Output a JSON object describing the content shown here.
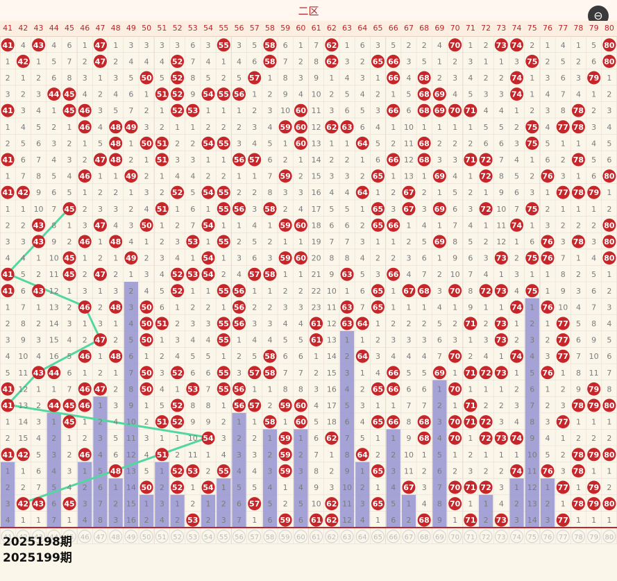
{
  "header": {
    "region_label": "二区",
    "zoom_icon": "zoom-out-icon"
  },
  "colors": {
    "hit": "#c6262a",
    "bar": "#9b99d3",
    "trend": "#53d7a0",
    "grid": "#e8dcd2",
    "miss_text": "#7b7b7b",
    "sep_line": "#c0252a"
  },
  "chart_data": {
    "type": "table",
    "columns": [
      41,
      42,
      43,
      44,
      45,
      46,
      47,
      48,
      49,
      50,
      51,
      52,
      53,
      54,
      55,
      56,
      57,
      58,
      59,
      60,
      61,
      62,
      63,
      64,
      65,
      66,
      67,
      68,
      69,
      70,
      71,
      72,
      73,
      74,
      75,
      76,
      77,
      78,
      79,
      80
    ],
    "periods_shown": [
      "2025198期",
      "2025199期"
    ],
    "rows": [
      [
        0,
        4,
        0,
        4,
        6,
        1,
        0,
        1,
        3,
        3,
        3,
        3,
        6,
        3,
        0,
        3,
        5,
        0,
        6,
        1,
        7,
        0,
        1,
        6,
        3,
        5,
        2,
        2,
        4,
        0,
        1,
        2,
        0,
        0,
        2,
        1,
        4,
        1,
        5,
        0
      ],
      [
        1,
        0,
        1,
        5,
        7,
        2,
        0,
        2,
        4,
        4,
        4,
        0,
        7,
        4,
        1,
        4,
        6,
        0,
        7,
        2,
        8,
        0,
        3,
        2,
        0,
        0,
        3,
        5,
        1,
        2,
        3,
        1,
        1,
        3,
        0,
        2,
        5,
        2,
        6,
        0
      ],
      [
        2,
        1,
        2,
        6,
        8,
        3,
        1,
        3,
        5,
        0,
        5,
        0,
        8,
        5,
        2,
        5,
        0,
        1,
        8,
        3,
        9,
        1,
        4,
        3,
        1,
        0,
        4,
        0,
        2,
        3,
        4,
        2,
        2,
        0,
        1,
        3,
        6,
        3,
        0,
        1
      ],
      [
        3,
        2,
        3,
        0,
        0,
        4,
        2,
        4,
        6,
        1,
        0,
        0,
        9,
        0,
        0,
        0,
        1,
        2,
        9,
        4,
        10,
        2,
        5,
        4,
        2,
        1,
        5,
        0,
        0,
        4,
        5,
        3,
        3,
        0,
        1,
        4,
        7,
        4,
        1,
        2
      ],
      [
        0,
        3,
        4,
        1,
        0,
        0,
        3,
        5,
        7,
        2,
        1,
        0,
        0,
        1,
        1,
        1,
        2,
        3,
        10,
        0,
        11,
        3,
        6,
        5,
        3,
        0,
        6,
        0,
        0,
        0,
        0,
        4,
        4,
        1,
        2,
        3,
        8,
        0,
        2,
        3
      ],
      [
        1,
        4,
        5,
        2,
        1,
        0,
        4,
        0,
        0,
        3,
        2,
        1,
        1,
        2,
        2,
        2,
        3,
        4,
        0,
        0,
        12,
        0,
        0,
        6,
        4,
        1,
        10,
        1,
        1,
        1,
        1,
        5,
        5,
        2,
        0,
        4,
        0,
        0,
        3,
        4
      ],
      [
        2,
        5,
        6,
        3,
        2,
        1,
        5,
        0,
        1,
        0,
        0,
        2,
        2,
        0,
        0,
        3,
        4,
        5,
        1,
        0,
        13,
        1,
        1,
        0,
        5,
        2,
        11,
        0,
        2,
        2,
        2,
        6,
        6,
        3,
        0,
        5,
        1,
        1,
        4,
        5
      ],
      [
        0,
        6,
        7,
        4,
        3,
        2,
        0,
        0,
        2,
        1,
        0,
        3,
        3,
        1,
        1,
        0,
        0,
        6,
        2,
        1,
        14,
        2,
        2,
        1,
        6,
        0,
        12,
        0,
        3,
        3,
        0,
        0,
        7,
        4,
        1,
        6,
        2,
        0,
        5,
        6
      ],
      [
        1,
        7,
        8,
        5,
        4,
        0,
        1,
        1,
        0,
        2,
        1,
        4,
        4,
        2,
        2,
        1,
        1,
        7,
        0,
        2,
        15,
        3,
        3,
        2,
        0,
        1,
        13,
        1,
        0,
        4,
        1,
        0,
        8,
        5,
        2,
        0,
        3,
        1,
        6,
        0
      ],
      [
        0,
        0,
        9,
        6,
        5,
        1,
        2,
        2,
        1,
        3,
        2,
        0,
        5,
        0,
        0,
        2,
        2,
        8,
        3,
        3,
        16,
        4,
        4,
        0,
        1,
        2,
        0,
        2,
        1,
        5,
        2,
        1,
        9,
        6,
        3,
        1,
        0,
        0,
        0,
        1
      ],
      [
        1,
        1,
        10,
        7,
        0,
        2,
        3,
        3,
        2,
        4,
        0,
        1,
        6,
        1,
        0,
        0,
        3,
        0,
        2,
        4,
        17,
        5,
        5,
        1,
        0,
        3,
        0,
        3,
        0,
        6,
        3,
        0,
        10,
        7,
        0,
        2,
        1,
        1,
        1,
        2
      ],
      [
        2,
        2,
        0,
        8,
        1,
        3,
        0,
        4,
        3,
        0,
        1,
        2,
        7,
        0,
        1,
        1,
        4,
        1,
        0,
        0,
        18,
        6,
        6,
        2,
        0,
        0,
        1,
        4,
        1,
        7,
        4,
        1,
        11,
        0,
        1,
        3,
        2,
        2,
        2,
        0
      ],
      [
        3,
        3,
        0,
        9,
        2,
        0,
        1,
        0,
        4,
        1,
        2,
        3,
        0,
        1,
        0,
        2,
        5,
        2,
        1,
        1,
        19,
        7,
        7,
        3,
        1,
        1,
        2,
        5,
        0,
        8,
        5,
        2,
        12,
        1,
        6,
        0,
        3,
        0,
        3,
        0
      ],
      [
        4,
        4,
        1,
        10,
        0,
        1,
        2,
        1,
        0,
        2,
        3,
        4,
        1,
        0,
        1,
        3,
        6,
        3,
        0,
        0,
        20,
        8,
        8,
        4,
        2,
        2,
        3,
        6,
        1,
        9,
        6,
        3,
        0,
        2,
        0,
        0,
        7,
        1,
        4,
        0
      ],
      [
        0,
        5,
        2,
        11,
        0,
        2,
        0,
        2,
        1,
        3,
        4,
        0,
        0,
        0,
        2,
        4,
        0,
        0,
        1,
        1,
        21,
        9,
        0,
        5,
        3,
        0,
        4,
        7,
        2,
        10,
        7,
        4,
        1,
        3,
        1,
        1,
        8,
        2,
        5,
        1
      ],
      [
        0,
        6,
        0,
        12,
        1,
        3,
        1,
        3,
        2,
        4,
        5,
        0,
        1,
        1,
        0,
        0,
        1,
        1,
        2,
        2,
        22,
        10,
        1,
        6,
        0,
        1,
        0,
        0,
        3,
        0,
        8,
        0,
        0,
        4,
        0,
        1,
        9,
        3,
        6,
        2
      ],
      [
        1,
        7,
        1,
        13,
        2,
        0,
        2,
        0,
        3,
        0,
        6,
        1,
        2,
        2,
        1,
        0,
        2,
        2,
        3,
        3,
        23,
        11,
        0,
        7,
        0,
        1,
        1,
        1,
        4,
        1,
        9,
        1,
        1,
        0,
        1,
        0,
        10,
        4,
        7,
        3
      ],
      [
        2,
        8,
        2,
        14,
        3,
        1,
        3,
        1,
        4,
        0,
        0,
        2,
        3,
        3,
        0,
        0,
        3,
        3,
        4,
        4,
        0,
        12,
        0,
        0,
        1,
        2,
        2,
        2,
        5,
        2,
        0,
        2,
        0,
        1,
        2,
        1,
        0,
        5,
        8,
        4
      ],
      [
        3,
        9,
        3,
        15,
        4,
        2,
        0,
        2,
        5,
        0,
        1,
        3,
        4,
        4,
        0,
        1,
        4,
        4,
        5,
        5,
        0,
        13,
        1,
        1,
        2,
        3,
        3,
        3,
        6,
        3,
        1,
        3,
        0,
        2,
        3,
        2,
        0,
        6,
        9,
        5
      ],
      [
        4,
        10,
        4,
        16,
        5,
        0,
        1,
        0,
        6,
        1,
        2,
        4,
        5,
        5,
        1,
        2,
        5,
        0,
        6,
        6,
        1,
        14,
        2,
        0,
        3,
        4,
        4,
        4,
        7,
        0,
        2,
        4,
        1,
        0,
        4,
        3,
        0,
        7,
        10,
        6
      ],
      [
        5,
        11,
        0,
        0,
        6,
        1,
        2,
        1,
        7,
        0,
        3,
        0,
        6,
        6,
        0,
        3,
        0,
        0,
        7,
        7,
        2,
        15,
        3,
        1,
        4,
        0,
        5,
        5,
        0,
        1,
        0,
        0,
        0,
        1,
        5,
        0,
        1,
        8,
        11,
        7
      ],
      [
        0,
        12,
        1,
        1,
        7,
        0,
        0,
        2,
        8,
        0,
        4,
        1,
        0,
        7,
        0,
        0,
        1,
        1,
        8,
        8,
        3,
        16,
        4,
        2,
        0,
        0,
        6,
        6,
        1,
        0,
        1,
        1,
        1,
        2,
        6,
        1,
        2,
        9,
        0,
        8
      ],
      [
        0,
        13,
        2,
        0,
        0,
        0,
        1,
        3,
        9,
        1,
        5,
        0,
        8,
        8,
        1,
        0,
        0,
        2,
        0,
        0,
        4,
        17,
        5,
        3,
        1,
        1,
        7,
        7,
        2,
        1,
        0,
        2,
        2,
        3,
        7,
        2,
        3,
        0,
        0,
        0
      ],
      [
        1,
        14,
        3,
        1,
        0,
        1,
        2,
        4,
        10,
        2,
        0,
        0,
        9,
        9,
        2,
        1,
        1,
        0,
        1,
        0,
        5,
        18,
        6,
        4,
        0,
        0,
        8,
        0,
        3,
        0,
        0,
        0,
        3,
        4,
        8,
        3,
        0,
        1,
        1,
        1
      ],
      [
        2,
        15,
        4,
        2,
        1,
        2,
        3,
        5,
        11,
        3,
        1,
        1,
        10,
        0,
        3,
        2,
        2,
        1,
        0,
        1,
        6,
        0,
        7,
        5,
        1,
        1,
        9,
        0,
        4,
        0,
        1,
        0,
        0,
        0,
        9,
        4,
        1,
        2,
        2,
        2
      ],
      [
        0,
        0,
        5,
        3,
        2,
        0,
        4,
        6,
        12,
        4,
        0,
        2,
        11,
        1,
        4,
        3,
        3,
        2,
        0,
        2,
        7,
        1,
        8,
        0,
        2,
        2,
        10,
        1,
        5,
        1,
        2,
        1,
        1,
        1,
        10,
        5,
        2,
        0,
        0,
        0
      ],
      [
        1,
        1,
        6,
        4,
        3,
        1,
        5,
        0,
        13,
        5,
        1,
        0,
        0,
        2,
        0,
        4,
        4,
        3,
        0,
        3,
        8,
        2,
        9,
        1,
        0,
        3,
        11,
        2,
        6,
        2,
        3,
        2,
        2,
        0,
        11,
        0,
        3,
        0,
        1,
        1
      ],
      [
        2,
        2,
        7,
        5,
        4,
        2,
        6,
        1,
        14,
        0,
        2,
        0,
        1,
        0,
        1,
        5,
        5,
        4,
        1,
        4,
        9,
        3,
        10,
        2,
        1,
        4,
        0,
        3,
        7,
        0,
        0,
        0,
        3,
        1,
        12,
        1,
        0,
        1,
        0,
        2
      ],
      [
        3,
        0,
        0,
        6,
        0,
        3,
        7,
        2,
        15,
        1,
        3,
        1,
        2,
        1,
        2,
        6,
        0,
        5,
        2,
        5,
        10,
        0,
        11,
        3,
        0,
        5,
        1,
        4,
        8,
        0,
        1,
        1,
        4,
        2,
        13,
        2,
        1,
        0,
        0,
        0
      ],
      [
        4,
        1,
        1,
        7,
        1,
        4,
        8,
        3,
        16,
        2,
        4,
        2,
        0,
        2,
        3,
        7,
        1,
        6,
        0,
        6,
        0,
        0,
        12,
        4,
        1,
        6,
        2,
        0,
        9,
        1,
        0,
        2,
        0,
        3,
        14,
        3,
        0,
        1,
        1,
        1
      ],
      [
        0,
        0,
        0,
        0,
        0,
        0,
        0,
        0,
        0,
        0,
        0,
        0,
        0,
        0,
        0,
        0,
        0,
        0,
        0,
        0,
        0,
        0,
        0,
        0,
        0,
        0,
        0,
        0,
        0,
        0,
        0,
        0,
        0,
        0,
        0,
        0,
        0,
        0,
        0,
        0
      ]
    ],
    "row_notes": "0 = drawn number (red ball); other values = omission counts. Last row is the empty prediction row for 2025199期.",
    "bars_from_row": 15,
    "trend_lines": "green connecting lines between hits"
  }
}
